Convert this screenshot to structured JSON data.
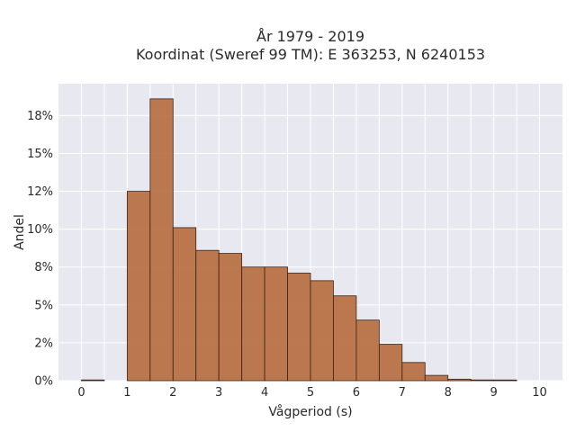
{
  "chart_data": {
    "type": "bar",
    "title": "År 1979 - 2019",
    "subtitle": "Koordinat (Sweref 99 TM): E 363253, N 6240153",
    "xlabel": "Vågperiod (s)",
    "ylabel": "Andel",
    "bin_width": 0.5,
    "bins": [
      {
        "x": [
          0.0,
          0.5
        ],
        "value": 0.05
      },
      {
        "x": [
          0.5,
          1.0
        ],
        "value": 0.0
      },
      {
        "x": [
          1.0,
          1.5
        ],
        "value": 12.5
      },
      {
        "x": [
          1.5,
          2.0
        ],
        "value": 18.6
      },
      {
        "x": [
          2.0,
          2.5
        ],
        "value": 10.1
      },
      {
        "x": [
          2.5,
          3.0
        ],
        "value": 8.6
      },
      {
        "x": [
          3.0,
          3.5
        ],
        "value": 8.4
      },
      {
        "x": [
          3.5,
          4.0
        ],
        "value": 7.5
      },
      {
        "x": [
          4.0,
          4.5
        ],
        "value": 7.5
      },
      {
        "x": [
          4.5,
          5.0
        ],
        "value": 7.1
      },
      {
        "x": [
          5.0,
          5.5
        ],
        "value": 6.6
      },
      {
        "x": [
          5.5,
          6.0
        ],
        "value": 5.6
      },
      {
        "x": [
          6.0,
          6.5
        ],
        "value": 4.0
      },
      {
        "x": [
          6.5,
          7.0
        ],
        "value": 2.4
      },
      {
        "x": [
          7.0,
          7.5
        ],
        "value": 1.2
      },
      {
        "x": [
          7.5,
          8.0
        ],
        "value": 0.35
      },
      {
        "x": [
          8.0,
          8.5
        ],
        "value": 0.1
      },
      {
        "x": [
          8.5,
          9.0
        ],
        "value": 0.05
      },
      {
        "x": [
          9.0,
          9.5
        ],
        "value": 0.03
      },
      {
        "x": [
          9.5,
          10.0
        ],
        "value": 0.0
      }
    ],
    "xlim": [
      -0.5,
      10.5
    ],
    "ylim": [
      0,
      19.6
    ],
    "xticks": [
      0,
      1,
      2,
      3,
      4,
      5,
      6,
      7,
      8,
      9,
      10
    ],
    "yticks": [
      {
        "value": 0,
        "label": "0%"
      },
      {
        "value": 2.5,
        "label": "2%"
      },
      {
        "value": 5,
        "label": "5%"
      },
      {
        "value": 7.5,
        "label": "8%"
      },
      {
        "value": 10,
        "label": "10%"
      },
      {
        "value": 12.5,
        "label": "12%"
      },
      {
        "value": 15,
        "label": "15%"
      },
      {
        "value": 17.5,
        "label": "18%"
      }
    ],
    "grid": true,
    "colors": {
      "bar": "#b66a3c",
      "bar_edge": "#3a2418",
      "plot_bg": "#e8e8f0",
      "grid": "#ffffff"
    }
  }
}
